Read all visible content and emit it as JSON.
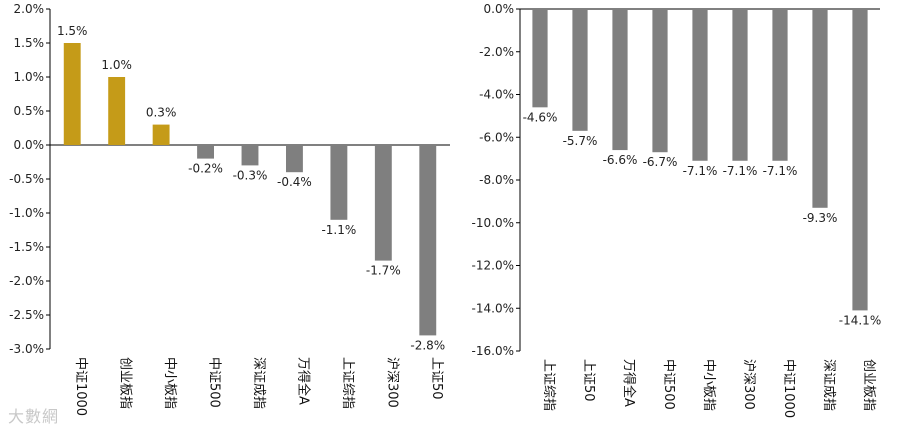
{
  "chart_data": [
    {
      "type": "bar",
      "categories": [
        "中证1000",
        "创业板指",
        "中小板指",
        "中证500",
        "深证成指",
        "万得全A",
        "上证综指",
        "沪深300",
        "上证50"
      ],
      "values": [
        1.5,
        1.0,
        0.3,
        -0.2,
        -0.3,
        -0.4,
        -1.1,
        -1.7,
        -2.8
      ],
      "data_labels": [
        "1.5%",
        "1.0%",
        "0.3%",
        "-0.2%",
        "-0.3%",
        "-0.4%",
        "-1.1%",
        "-1.7%",
        "-2.8%"
      ],
      "ylim": [
        -3.0,
        2.0
      ],
      "yticks": [
        2.0,
        1.5,
        1.0,
        0.5,
        0.0,
        -0.5,
        -1.0,
        -1.5,
        -2.0,
        -2.5,
        -3.0
      ],
      "ytick_labels": [
        "2.0%",
        "1.5%",
        "1.0%",
        "0.5%",
        "0.0%",
        "-0.5%",
        "-1.0%",
        "-1.5%",
        "-2.0%",
        "-2.5%",
        "-3.0%"
      ],
      "title": "",
      "xlabel": "",
      "ylabel": "",
      "grid": true,
      "colors": {
        "positive": "#C59B18",
        "negative": "#7F7F7F"
      }
    },
    {
      "type": "bar",
      "categories": [
        "上证综指",
        "上证50",
        "万得全A",
        "中证500",
        "中小板指",
        "沪深300",
        "中证1000",
        "深证成指",
        "创业板指"
      ],
      "values": [
        -4.6,
        -5.7,
        -6.6,
        -6.7,
        -7.1,
        -7.1,
        -7.1,
        -9.3,
        -14.1
      ],
      "data_labels": [
        "-4.6%",
        "-5.7%",
        "-6.6%",
        "-6.7%",
        "-7.1%",
        "-7.1%",
        "-7.1%",
        "-9.3%",
        "-14.1%"
      ],
      "ylim": [
        -16.0,
        0.0
      ],
      "yticks": [
        0.0,
        -2.0,
        -4.0,
        -6.0,
        -8.0,
        -10.0,
        -12.0,
        -14.0,
        -16.0
      ],
      "ytick_labels": [
        "0.0%",
        "-2.0%",
        "-4.0%",
        "-6.0%",
        "-8.0%",
        "-10.0%",
        "-12.0%",
        "-14.0%",
        "-16.0%"
      ],
      "title": "",
      "xlabel": "",
      "ylabel": "",
      "grid": true,
      "colors": {
        "positive": "#C59B18",
        "negative": "#7F7F7F"
      }
    }
  ],
  "watermark": "大數網"
}
